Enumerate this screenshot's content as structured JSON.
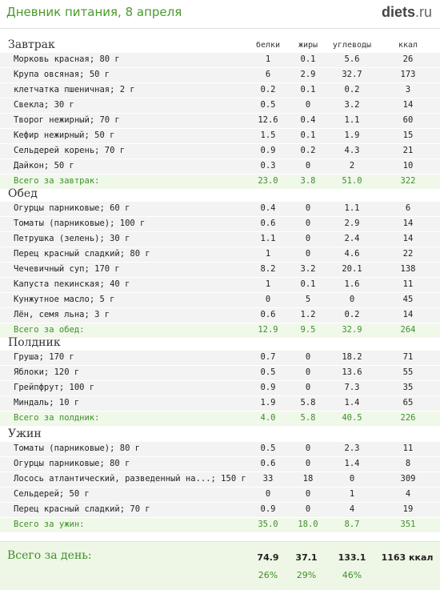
{
  "header": {
    "title": "Дневник питания, 8 апреля",
    "logo_main": "diets",
    "logo_ext": ".ru"
  },
  "columns": {
    "protein": "белки",
    "fat": "жиры",
    "carbs": "углеводы",
    "kcal": "ккал"
  },
  "meals": [
    {
      "name": "Завтрак",
      "items": [
        {
          "name": "Морковь красная; 80 г",
          "protein": "1",
          "fat": "0.1",
          "carbs": "5.6",
          "kcal": "26"
        },
        {
          "name": "Крупа овсяная; 50 г",
          "protein": "6",
          "fat": "2.9",
          "carbs": "32.7",
          "kcal": "173"
        },
        {
          "name": "клетчатка пшеничная; 2 г",
          "protein": "0.2",
          "fat": "0.1",
          "carbs": "0.2",
          "kcal": "3"
        },
        {
          "name": "Свекла; 30 г",
          "protein": "0.5",
          "fat": "0",
          "carbs": "3.2",
          "kcal": "14"
        },
        {
          "name": "Творог нежирный; 70 г",
          "protein": "12.6",
          "fat": "0.4",
          "carbs": "1.1",
          "kcal": "60"
        },
        {
          "name": "Кефир нежирный; 50 г",
          "protein": "1.5",
          "fat": "0.1",
          "carbs": "1.9",
          "kcal": "15"
        },
        {
          "name": "Сельдерей корень; 70 г",
          "protein": "0.9",
          "fat": "0.2",
          "carbs": "4.3",
          "kcal": "21"
        },
        {
          "name": "Дайкон; 50 г",
          "protein": "0.3",
          "fat": "0",
          "carbs": "2",
          "kcal": "10"
        }
      ],
      "total": {
        "label": "Всего за завтрак:",
        "protein": "23.0",
        "fat": "3.8",
        "carbs": "51.0",
        "kcal": "322"
      }
    },
    {
      "name": "Обед",
      "items": [
        {
          "name": "Огурцы парниковые; 60 г",
          "protein": "0.4",
          "fat": "0",
          "carbs": "1.1",
          "kcal": "6"
        },
        {
          "name": "Томаты (парниковые); 100 г",
          "protein": "0.6",
          "fat": "0",
          "carbs": "2.9",
          "kcal": "14"
        },
        {
          "name": "Петрушка (зелень); 30 г",
          "protein": "1.1",
          "fat": "0",
          "carbs": "2.4",
          "kcal": "14"
        },
        {
          "name": "Перец красный сладкий; 80 г",
          "protein": "1",
          "fat": "0",
          "carbs": "4.6",
          "kcal": "22"
        },
        {
          "name": "Чечевичный суп; 170 г",
          "protein": "8.2",
          "fat": "3.2",
          "carbs": "20.1",
          "kcal": "138"
        },
        {
          "name": "Капуста пекинская; 40 г",
          "protein": "1",
          "fat": "0.1",
          "carbs": "1.6",
          "kcal": "11"
        },
        {
          "name": "Кунжутное масло; 5 г",
          "protein": "0",
          "fat": "5",
          "carbs": "0",
          "kcal": "45"
        },
        {
          "name": "Лён, семя льна; 3 г",
          "protein": "0.6",
          "fat": "1.2",
          "carbs": "0.2",
          "kcal": "14"
        }
      ],
      "total": {
        "label": "Всего за обед:",
        "protein": "12.9",
        "fat": "9.5",
        "carbs": "32.9",
        "kcal": "264"
      }
    },
    {
      "name": "Полдник",
      "items": [
        {
          "name": "Груша; 170 г",
          "protein": "0.7",
          "fat": "0",
          "carbs": "18.2",
          "kcal": "71"
        },
        {
          "name": "Яблоки; 120 г",
          "protein": "0.5",
          "fat": "0",
          "carbs": "13.6",
          "kcal": "55"
        },
        {
          "name": "Грейпфрут; 100 г",
          "protein": "0.9",
          "fat": "0",
          "carbs": "7.3",
          "kcal": "35"
        },
        {
          "name": "Миндаль; 10 г",
          "protein": "1.9",
          "fat": "5.8",
          "carbs": "1.4",
          "kcal": "65"
        }
      ],
      "total": {
        "label": "Всего за полдник:",
        "protein": "4.0",
        "fat": "5.8",
        "carbs": "40.5",
        "kcal": "226"
      }
    },
    {
      "name": "Ужин",
      "items": [
        {
          "name": "Томаты (парниковые); 80 г",
          "protein": "0.5",
          "fat": "0",
          "carbs": "2.3",
          "kcal": "11"
        },
        {
          "name": "Огурцы парниковые; 80 г",
          "protein": "0.6",
          "fat": "0",
          "carbs": "1.4",
          "kcal": "8"
        },
        {
          "name": "Лосось атлантический, разведенный на...; 150 г",
          "protein": "33",
          "fat": "18",
          "carbs": "0",
          "kcal": "309"
        },
        {
          "name": "Сельдерей; 50 г",
          "protein": "0",
          "fat": "0",
          "carbs": "1",
          "kcal": "4"
        },
        {
          "name": "Перец красный сладкий; 70 г",
          "protein": "0.9",
          "fat": "0",
          "carbs": "4",
          "kcal": "19"
        }
      ],
      "total": {
        "label": "Всего за ужин:",
        "protein": "35.0",
        "fat": "18.0",
        "carbs": "8.7",
        "kcal": "351"
      }
    }
  ],
  "day": {
    "label": "Всего за день:",
    "protein": "74.9",
    "fat": "37.1",
    "carbs": "133.1",
    "kcal": "1163 ккал",
    "protein_pct": "26%",
    "fat_pct": "29%",
    "carbs_pct": "46%"
  }
}
